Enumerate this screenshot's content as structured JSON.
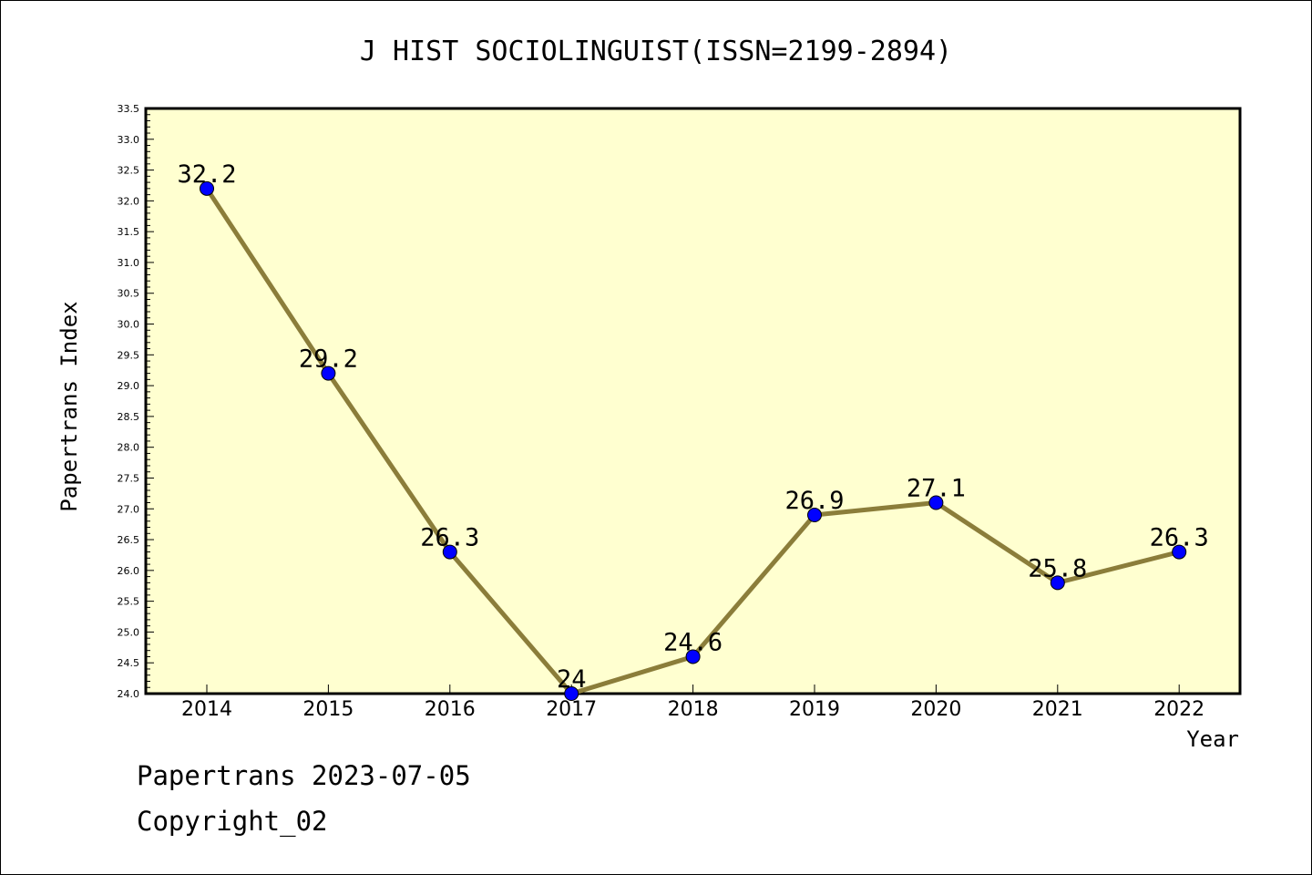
{
  "footer": {
    "line1": "Papertrans 2023-07-05",
    "line2": "Copyright_02"
  },
  "chart_data": {
    "type": "line",
    "title": "J HIST SOCIOLINGUIST(ISSN=2199-2894)",
    "xlabel": "Year",
    "ylabel": "Papertrans Index",
    "categories": [
      "2014",
      "2015",
      "2016",
      "2017",
      "2018",
      "2019",
      "2020",
      "2021",
      "2022"
    ],
    "values": [
      32.2,
      29.2,
      26.3,
      24,
      24.6,
      26.9,
      27.1,
      25.8,
      26.3
    ],
    "data_labels": [
      "32.2",
      "29.2",
      "26.3",
      "24",
      "24.6",
      "26.9",
      "27.1",
      "25.8",
      "26.3"
    ],
    "ylim": [
      24.0,
      33.5
    ],
    "y_ticks": [
      "24.0",
      "24.5",
      "25.0",
      "25.5",
      "26.0",
      "26.5",
      "27.0",
      "27.5",
      "28.0",
      "28.5",
      "29.0",
      "29.5",
      "30.0",
      "30.5",
      "31.0",
      "31.5",
      "32.0",
      "32.5",
      "33.0",
      "33.5"
    ],
    "grid": false,
    "colors": {
      "plot_background": "#ffffd0",
      "line": "#8b7d3a",
      "marker": "#0000ff"
    }
  }
}
